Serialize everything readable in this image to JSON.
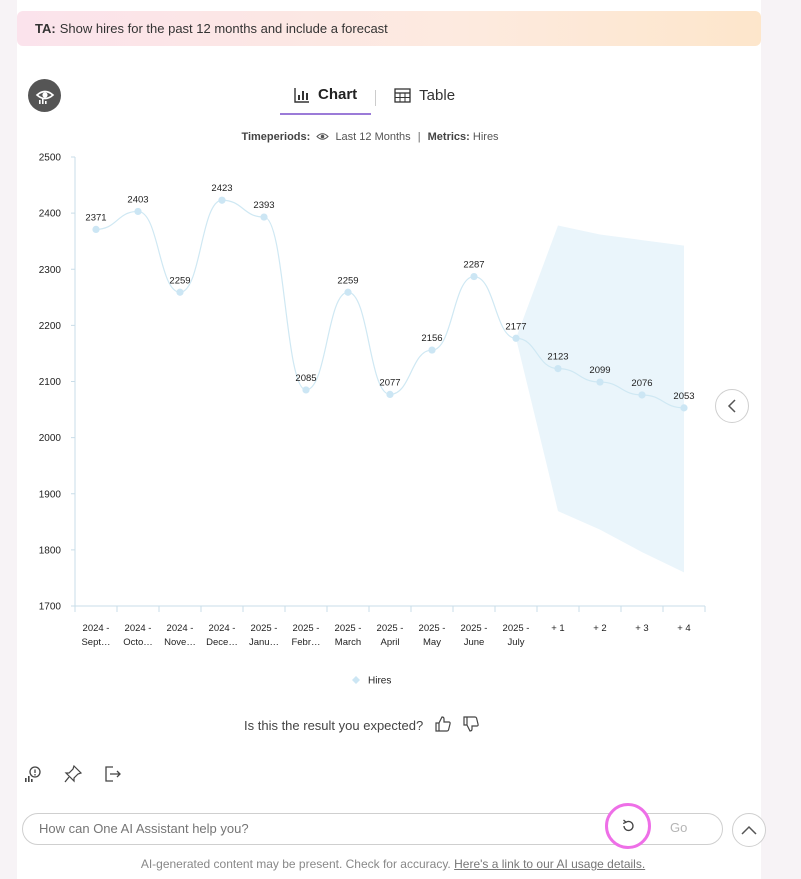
{
  "prompt": {
    "tag": "TA:",
    "text": "Show hires for the past 12 months and include a forecast"
  },
  "tabs": [
    {
      "label": "Chart",
      "icon": "bar-chart-icon",
      "active": true
    },
    {
      "label": "Table",
      "icon": "table-icon",
      "active": false
    }
  ],
  "filters": {
    "timeperiods_label": "Timeperiods:",
    "timeperiods_value": "Last 12 Months",
    "metrics_label": "Metrics:",
    "metrics_value": "Hires"
  },
  "chart_data": {
    "type": "line",
    "title": "",
    "categories": [
      "2024 - Sept…",
      "2024 - Octo…",
      "2024 - Nove…",
      "2024 - Dece…",
      "2025 - Janu…",
      "2025 - Febr…",
      "2025 - March",
      "2025 - April",
      "2025 - May",
      "2025 - June",
      "2025 - July",
      "+ 1",
      "+ 2",
      "+ 3",
      "+ 4"
    ],
    "series": [
      {
        "name": "Hires",
        "values": [
          2371,
          2403,
          2259,
          2423,
          2393,
          2085,
          2259,
          2077,
          2156,
          2287,
          2177,
          2123,
          2099,
          2076,
          2053
        ]
      }
    ],
    "forecast_band": {
      "start_index": 10,
      "upper": [
        2177,
        2378,
        2362,
        2352,
        2342
      ],
      "lower": [
        2177,
        1869,
        1836,
        1796,
        1760
      ]
    },
    "ylim": [
      1700,
      2500
    ],
    "yticks": [
      1700,
      1800,
      1900,
      2000,
      2100,
      2200,
      2300,
      2400,
      2500
    ],
    "legend": "bottom",
    "grid": false,
    "colors": {
      "line": "#cfe8f3",
      "point": "#cce6f4",
      "band": "#eaf5fb"
    }
  },
  "feedback": {
    "question": "Is this the result you expected?"
  },
  "input": {
    "placeholder": "How can One AI Assistant help you?",
    "go_label": "Go"
  },
  "disclaimer": {
    "text": "AI-generated content may be present. Check for accuracy.",
    "link": "Here's a link to our AI usage details."
  }
}
